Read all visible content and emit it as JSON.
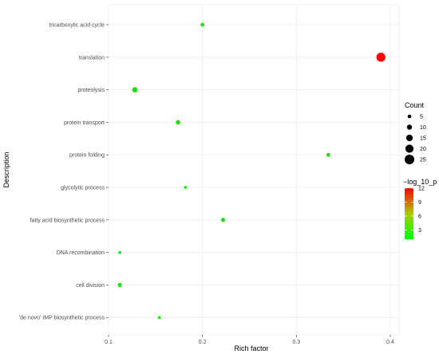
{
  "chart_data": {
    "type": "scatter",
    "xlabel": "Rich factor",
    "ylabel": "Description",
    "xlim": [
      0.1,
      0.4
    ],
    "x_ticks": [
      "0.1",
      "0.2",
      "0.3",
      "0.4"
    ],
    "grid": true,
    "categories": [
      "tricarboxylic acid cycle",
      "translation",
      "proteolysis",
      "protein transport",
      "protein folding",
      "glycolytic process",
      "fatty acid biosynthetic process",
      "DNA recombination",
      "cell division",
      "'de novo' IMP biosynthetic process"
    ],
    "points": [
      {
        "term": "tricarboxylic acid cycle",
        "rich_factor": 0.2,
        "count": 6,
        "log10p": 2.2
      },
      {
        "term": "translation",
        "rich_factor": 0.39,
        "count": 23,
        "log10p": 12
      },
      {
        "term": "proteolysis",
        "rich_factor": 0.128,
        "count": 11,
        "log10p": 2.6
      },
      {
        "term": "protein transport",
        "rich_factor": 0.174,
        "count": 8,
        "log10p": 2.4
      },
      {
        "term": "protein folding",
        "rich_factor": 0.334,
        "count": 6,
        "log10p": 2.3
      },
      {
        "term": "glycolytic process",
        "rich_factor": 0.182,
        "count": 3,
        "log10p": 1.8
      },
      {
        "term": "fatty acid biosynthetic process",
        "rich_factor": 0.222,
        "count": 7,
        "log10p": 2.2
      },
      {
        "term": "DNA recombination",
        "rich_factor": 0.112,
        "count": 3,
        "log10p": 1.6
      },
      {
        "term": "cell division",
        "rich_factor": 0.112,
        "count": 7,
        "log10p": 1.9
      },
      {
        "term": "'de novo' IMP biosynthetic process",
        "rich_factor": 0.154,
        "count": 3,
        "log10p": 1.7
      }
    ],
    "legend_size": {
      "title": "Count",
      "values": [
        5,
        10,
        15,
        20,
        25
      ],
      "labels": [
        "5",
        "10",
        "15",
        "20",
        "25"
      ]
    },
    "legend_color": {
      "title": "−log_10_p",
      "range": [
        1,
        12
      ],
      "ticks": [
        3,
        6,
        9,
        12
      ],
      "tick_labels": [
        "3",
        "6",
        "9",
        "12"
      ],
      "low_color": "#00ff00",
      "high_color": "#ff0000"
    },
    "legend_placement": "right"
  }
}
